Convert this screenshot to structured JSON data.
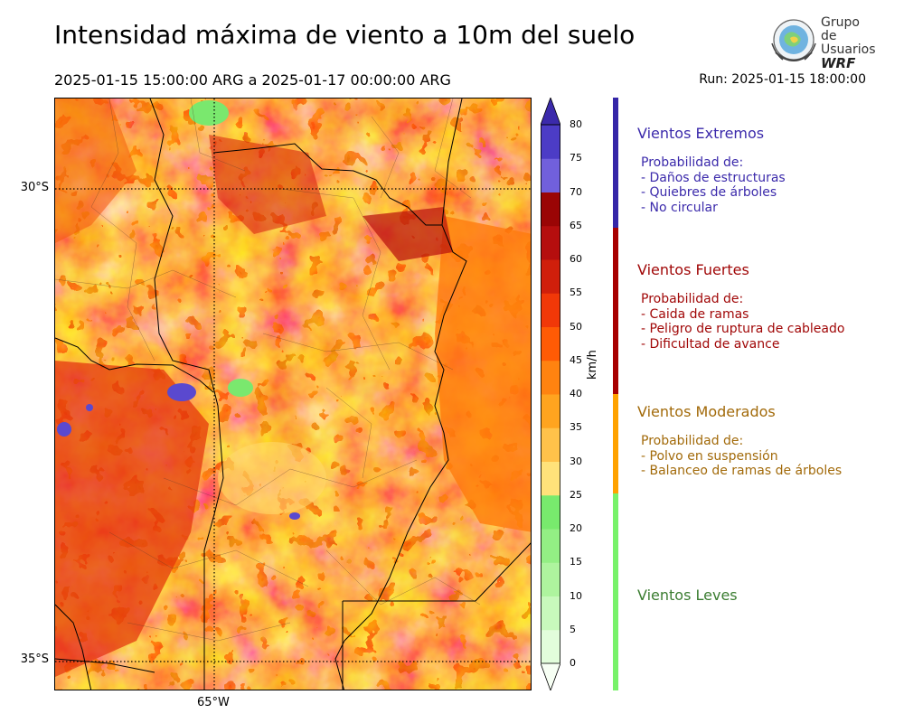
{
  "title": "Intensidad máxima de viento a 10m del suelo",
  "period": "2025-01-15 15:00:00 ARG  a  2025-01-17 00:00:00 ARG",
  "run": "Run: 2025-01-15 18:00:00",
  "logo": {
    "line1": "Grupo de",
    "line2": "Usuarios",
    "line3": "WRF"
  },
  "map": {
    "lat_labels": [
      "30°S",
      "35°S"
    ],
    "lon_labels": [
      "65°W"
    ]
  },
  "colorbar": {
    "unit": "km/h",
    "ticks": [
      "0",
      "5",
      "10",
      "15",
      "20",
      "25",
      "30",
      "35",
      "40",
      "45",
      "50",
      "55",
      "60",
      "65",
      "70",
      "75",
      "80"
    ],
    "colors": [
      "#f7fff4",
      "#e2fddb",
      "#c8f9bc",
      "#aef49e",
      "#93ef84",
      "#78ea6d",
      "#ffe27a",
      "#ffc24a",
      "#ffa41f",
      "#ff8310",
      "#ff5b05",
      "#f13808",
      "#d01f0b",
      "#b50e0e",
      "#9a0505",
      "#7160dc",
      "#4c3cc6",
      "#3b2aab"
    ]
  },
  "categories": [
    {
      "title": "Vientos Extremos",
      "color": "#3b2aab",
      "bar_color": "#3526a8",
      "lines": [
        "Probabilidad de:",
        "- Daños de estructuras",
        "- Quiebres de árboles",
        "- No circular"
      ]
    },
    {
      "title": "Vientos Fuertes",
      "color": "#a10808",
      "bar_color": "#a80000",
      "lines": [
        "Probabilidad de:",
        "- Caida de ramas",
        "- Peligro de ruptura de cableado",
        "- Dificultad de avance"
      ]
    },
    {
      "title": "Vientos Moderados",
      "color": "#a26a0a",
      "bar_color": "#ffa200",
      "lines": [
        "Probabilidad de:",
        "- Polvo en suspensión",
        "- Balanceo de ramas de árboles"
      ]
    },
    {
      "title": "Vientos Leves",
      "color": "#3b7d31",
      "bar_color": "#78f26a",
      "lines": []
    }
  ]
}
